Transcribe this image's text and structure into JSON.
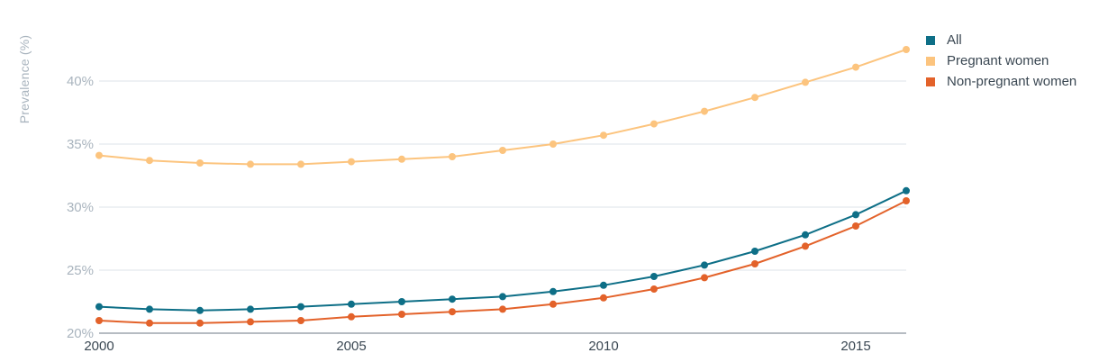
{
  "chart_data": {
    "type": "line",
    "title": "",
    "xlabel": "",
    "ylabel": "Prevalence (%)",
    "xlim": [
      2000,
      2016
    ],
    "ylim": [
      20,
      45
    ],
    "x_ticks": [
      "2000",
      "2005",
      "2010",
      "2015"
    ],
    "y_ticks": [
      "20%",
      "25%",
      "30%",
      "35%",
      "40%"
    ],
    "grid": true,
    "legend_position": "top-right",
    "x": [
      2000,
      2001,
      2002,
      2003,
      2004,
      2005,
      2006,
      2007,
      2008,
      2009,
      2010,
      2011,
      2012,
      2013,
      2014,
      2015,
      2016
    ],
    "series": [
      {
        "name": "All",
        "color": "#0e6f87",
        "values": [
          22.1,
          21.9,
          21.8,
          21.9,
          22.1,
          22.3,
          22.5,
          22.7,
          22.9,
          23.3,
          23.8,
          24.5,
          25.4,
          26.5,
          27.8,
          29.4,
          31.3
        ]
      },
      {
        "name": "Pregnant women",
        "color": "#fcc47e",
        "values": [
          34.1,
          33.7,
          33.5,
          33.4,
          33.4,
          33.6,
          33.8,
          34.0,
          34.5,
          35.0,
          35.7,
          36.6,
          37.6,
          38.7,
          39.9,
          41.1,
          42.5
        ]
      },
      {
        "name": "Non-pregnant women",
        "color": "#e3622a",
        "values": [
          21.0,
          20.8,
          20.8,
          20.9,
          21.0,
          21.3,
          21.5,
          21.7,
          21.9,
          22.3,
          22.8,
          23.5,
          24.4,
          25.5,
          26.9,
          28.5,
          30.5
        ]
      }
    ]
  }
}
